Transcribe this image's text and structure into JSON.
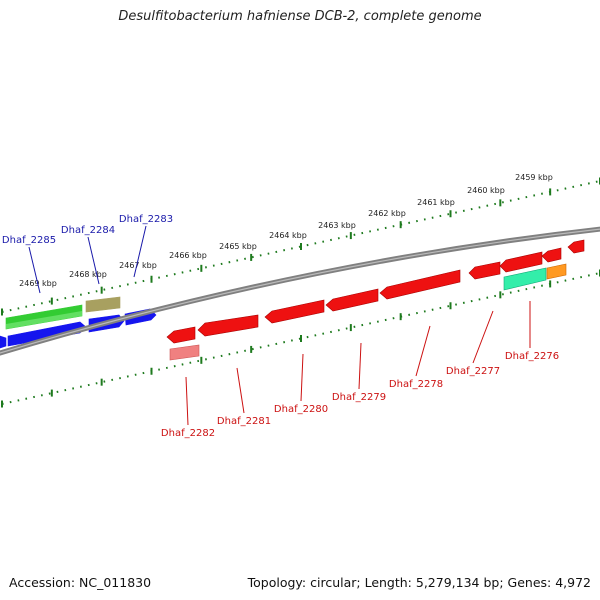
{
  "title": "Desulfitobacterium hafniense DCB-2, complete genome",
  "footer": {
    "accession": "Accession: NC_011830",
    "summary": "Topology: circular; Length: 5,279,134 bp; Genes: 4,972"
  },
  "colors": {
    "backbone": "#808080",
    "ruler": "#1e7a1e",
    "forward_label": "#1a1aaa",
    "reverse_label": "#cc1111",
    "cds_blue": "#1515ee",
    "cds_green": "#33cc33",
    "cds_olive": "#a8a060",
    "cds_red": "#ee1111",
    "cds_pink": "#f08080",
    "cds_teal": "#33eeaa",
    "cds_orange": "#ff9922"
  },
  "kbp_ticks": [
    {
      "label": "2469 kbp"
    },
    {
      "label": "2468 kbp"
    },
    {
      "label": "2467 kbp"
    },
    {
      "label": "2466 kbp"
    },
    {
      "label": "2465 kbp"
    },
    {
      "label": "2464 kbp"
    },
    {
      "label": "2463 kbp"
    },
    {
      "label": "2462 kbp"
    },
    {
      "label": "2461 kbp"
    },
    {
      "label": "2460 kbp"
    },
    {
      "label": "2459 kbp"
    }
  ],
  "forward_genes": [
    {
      "label": "Dhaf_2285"
    },
    {
      "label": "Dhaf_2284"
    },
    {
      "label": "Dhaf_2283"
    }
  ],
  "reverse_genes": [
    {
      "label": "Dhaf_2282"
    },
    {
      "label": "Dhaf_2281"
    },
    {
      "label": "Dhaf_2280"
    },
    {
      "label": "Dhaf_2279"
    },
    {
      "label": "Dhaf_2278"
    },
    {
      "label": "Dhaf_2277"
    },
    {
      "label": "Dhaf_2276"
    }
  ]
}
